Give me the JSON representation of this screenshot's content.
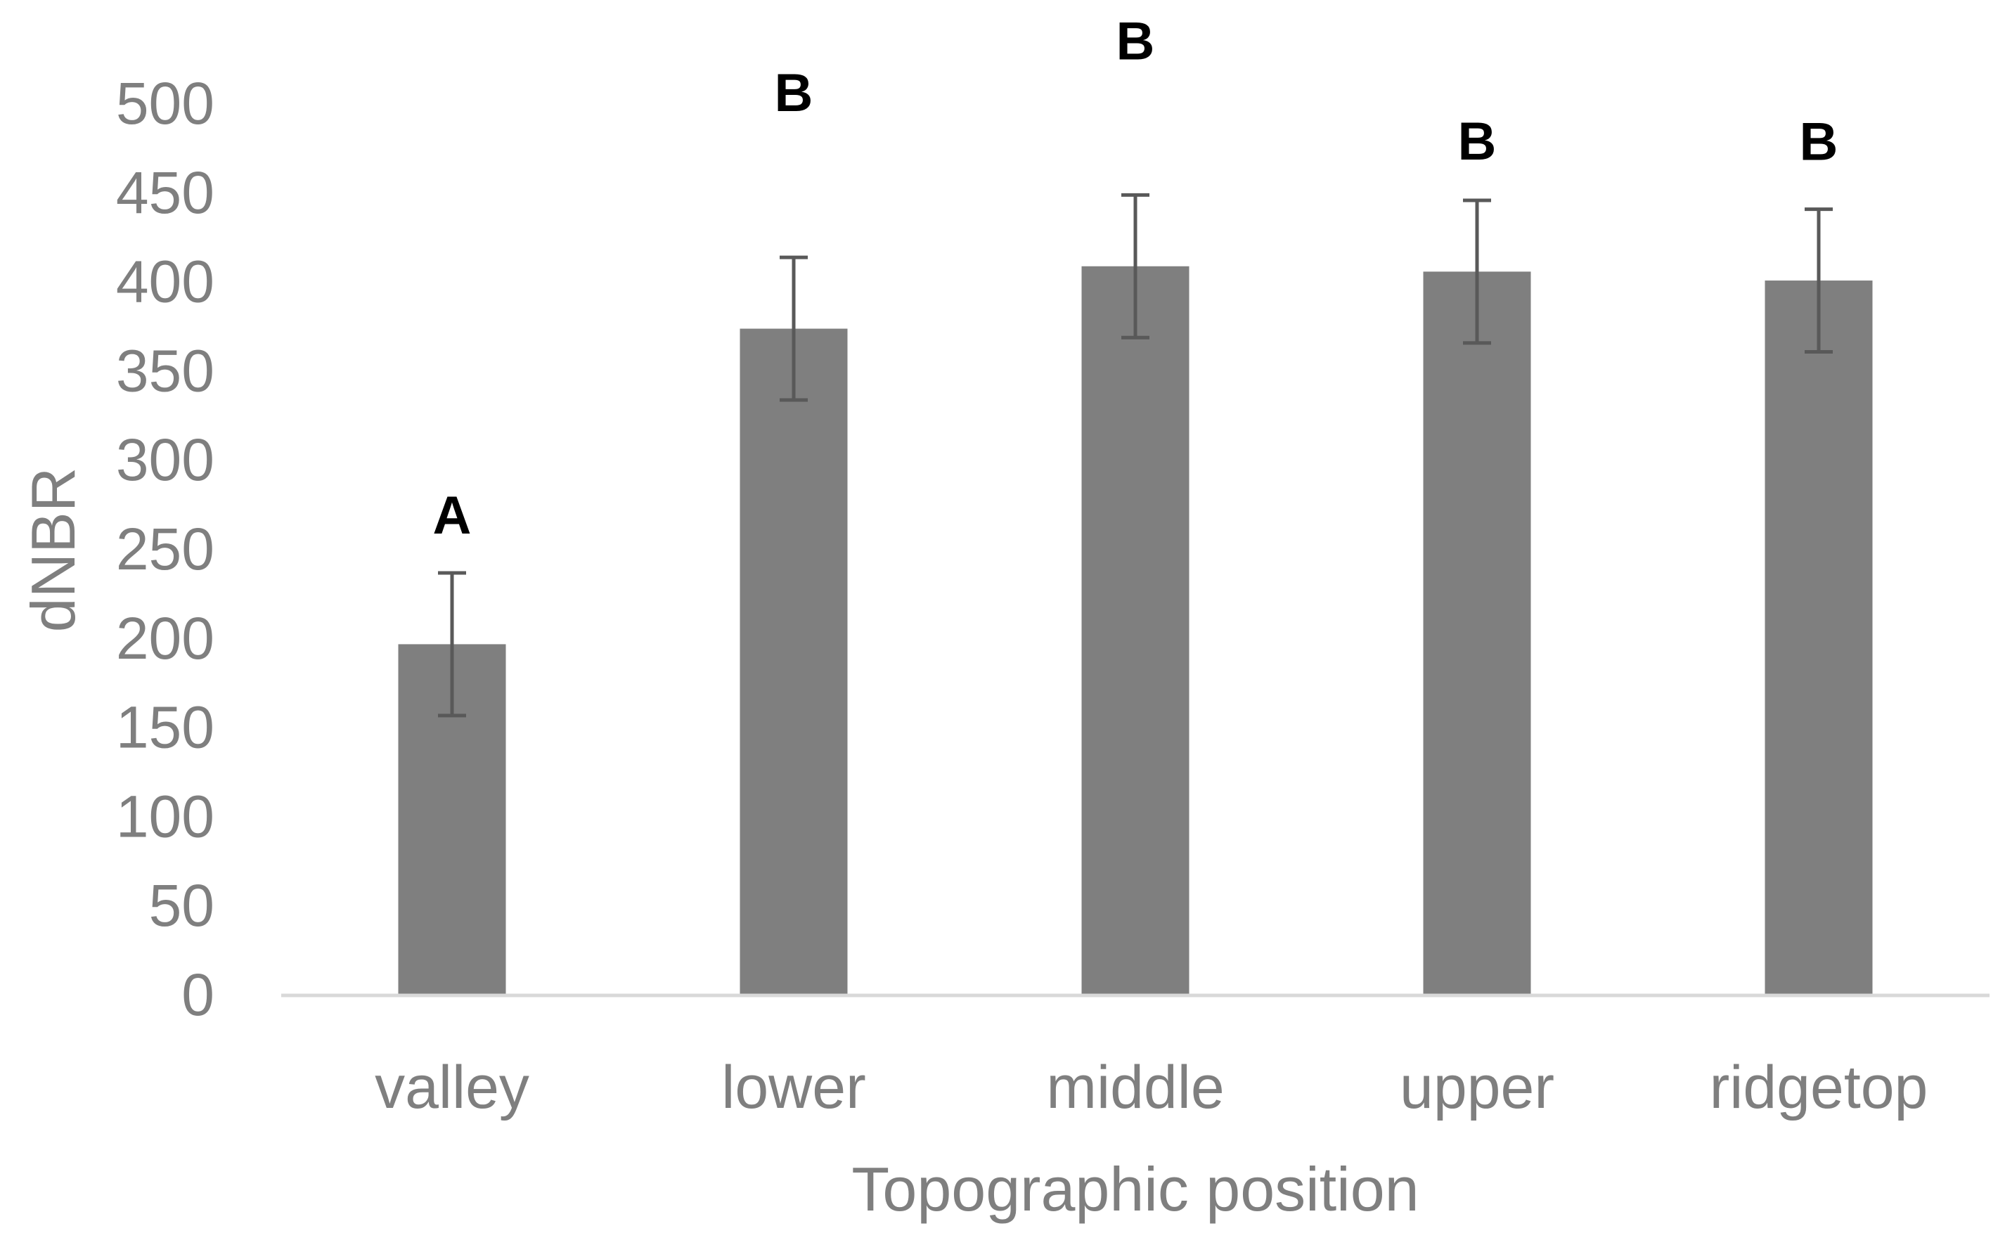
{
  "chart_data": {
    "type": "bar",
    "title": "",
    "xlabel": "Topographic position",
    "ylabel": "dNBR",
    "categories": [
      "valley",
      "lower",
      "middle",
      "upper",
      "ridgetop"
    ],
    "values": [
      197,
      374,
      409,
      406,
      401
    ],
    "error_bars": [
      [
        157,
        237
      ],
      [
        334,
        414
      ],
      [
        369,
        449
      ],
      [
        366,
        446
      ],
      [
        361,
        441
      ]
    ],
    "significance_letters": [
      "A",
      "B",
      "B",
      "B",
      "B"
    ],
    "ylim": [
      0,
      500
    ],
    "yticks": [
      0,
      50,
      100,
      150,
      200,
      250,
      300,
      350,
      400,
      450,
      500
    ],
    "grid": false,
    "legend": "none",
    "colors": {
      "bar": "#7f7f7f",
      "error_bar": "#595959",
      "axis_line": "#d9d9d9",
      "tick_text": "#7f7f7f",
      "letter_text": "#000000"
    }
  }
}
